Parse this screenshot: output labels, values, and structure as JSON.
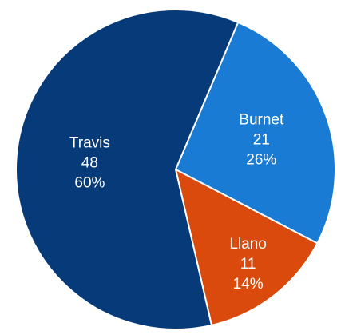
{
  "chart_data": {
    "type": "pie",
    "slices": [
      {
        "label": "Burnet",
        "value": 21,
        "percent": "26%",
        "color": "#1a7bd4"
      },
      {
        "label": "Llano",
        "value": 11,
        "percent": "14%",
        "color": "#d94a0c"
      },
      {
        "label": "Travis",
        "value": 48,
        "percent": "60%",
        "color": "#073a79"
      }
    ],
    "slice_border_color": "#ffffff"
  }
}
